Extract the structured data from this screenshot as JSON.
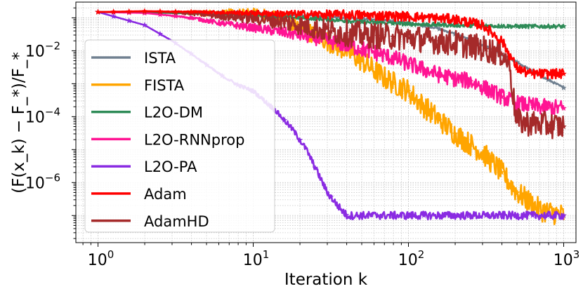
{
  "chart_data": {
    "type": "line",
    "xscale": "log",
    "yscale": "log",
    "xlim": [
      0.72,
      1200
    ],
    "ylim": [
      1.5e-08,
      0.3
    ],
    "xlabel": "Iteration k",
    "ylabel": "(F(x_k) − F_*)/F_*",
    "grid": true,
    "legend_position": "left",
    "x_ticks": [
      {
        "value": 1,
        "base": "10",
        "exp": "0"
      },
      {
        "value": 10,
        "base": "10",
        "exp": "1"
      },
      {
        "value": 100,
        "base": "10",
        "exp": "2"
      },
      {
        "value": 1000,
        "base": "10",
        "exp": "3"
      }
    ],
    "y_ticks": [
      {
        "value": 0.01,
        "base": "10",
        "exp": "−2"
      },
      {
        "value": 0.0001,
        "base": "10",
        "exp": "−4"
      },
      {
        "value": 1e-06,
        "base": "10",
        "exp": "−6"
      }
    ],
    "series": [
      {
        "name": "ISTA",
        "color": "#708090",
        "noise": 0.03,
        "points": [
          [
            1,
            0.15
          ],
          [
            2,
            0.155
          ],
          [
            5,
            0.15
          ],
          [
            10,
            0.14
          ],
          [
            20,
            0.12
          ],
          [
            50,
            0.095
          ],
          [
            100,
            0.07
          ],
          [
            150,
            0.05
          ],
          [
            200,
            0.032
          ],
          [
            300,
            0.015
          ],
          [
            500,
            0.0045
          ],
          [
            700,
            0.0018
          ],
          [
            1000,
            0.00075
          ]
        ]
      },
      {
        "name": "FISTA",
        "color": "#ffa500",
        "noise": 0.35,
        "points": [
          [
            1,
            0.15
          ],
          [
            2,
            0.15
          ],
          [
            5,
            0.14
          ],
          [
            10,
            0.13
          ],
          [
            15,
            0.1
          ],
          [
            20,
            0.05
          ],
          [
            30,
            0.02
          ],
          [
            40,
            0.01
          ],
          [
            50,
            0.005
          ],
          [
            70,
            0.0015
          ],
          [
            100,
            0.0006
          ],
          [
            120,
            0.00025
          ],
          [
            150,
            0.0001
          ],
          [
            200,
            3e-05
          ],
          [
            300,
            8e-06
          ],
          [
            400,
            2e-06
          ],
          [
            500,
            5e-07
          ],
          [
            700,
            1.5e-07
          ],
          [
            1000,
            1e-07
          ]
        ]
      },
      {
        "name": "L2O-DM",
        "color": "#2e8b57",
        "noise": 0.06,
        "points": [
          [
            1,
            0.15
          ],
          [
            3,
            0.14
          ],
          [
            6,
            0.13
          ],
          [
            10,
            0.12
          ],
          [
            30,
            0.09
          ],
          [
            50,
            0.075
          ],
          [
            100,
            0.065
          ],
          [
            200,
            0.06
          ],
          [
            500,
            0.055
          ],
          [
            1000,
            0.055
          ]
        ]
      },
      {
        "name": "L2O-RNNprop",
        "color": "#ff1493",
        "noise": 0.25,
        "points": [
          [
            1,
            0.15
          ],
          [
            2,
            0.14
          ],
          [
            4,
            0.1
          ],
          [
            6,
            0.07
          ],
          [
            10,
            0.05
          ],
          [
            20,
            0.03
          ],
          [
            40,
            0.015
          ],
          [
            60,
            0.009
          ],
          [
            80,
            0.006
          ],
          [
            100,
            0.004
          ],
          [
            150,
            0.002
          ],
          [
            200,
            0.0014
          ],
          [
            250,
            0.0012
          ],
          [
            300,
            0.0008
          ],
          [
            400,
            0.0004
          ],
          [
            500,
            0.00025
          ],
          [
            700,
            0.0002
          ],
          [
            1000,
            0.00018
          ]
        ]
      },
      {
        "name": "L2O-PA",
        "color": "#8a2be2",
        "noise": 0.12,
        "points": [
          [
            1,
            0.15
          ],
          [
            2,
            0.06
          ],
          [
            3,
            0.02
          ],
          [
            4,
            0.008
          ],
          [
            6,
            0.002
          ],
          [
            8,
            0.0009
          ],
          [
            10,
            0.0006
          ],
          [
            14,
            0.00015
          ],
          [
            18,
            4e-05
          ],
          [
            22,
            1e-05
          ],
          [
            26,
            2e-06
          ],
          [
            30,
            5e-07
          ],
          [
            35,
            2e-07
          ],
          [
            40,
            1e-07
          ],
          [
            50,
            1e-07
          ],
          [
            100,
            1e-07
          ],
          [
            1000,
            1e-07
          ]
        ]
      },
      {
        "name": "Adam",
        "color": "#ff0000",
        "noise": 0.15,
        "points": [
          [
            1,
            0.15
          ],
          [
            2,
            0.16
          ],
          [
            5,
            0.15
          ],
          [
            10,
            0.14
          ],
          [
            20,
            0.13
          ],
          [
            50,
            0.12
          ],
          [
            100,
            0.11
          ],
          [
            200,
            0.09
          ],
          [
            300,
            0.06
          ],
          [
            400,
            0.02
          ],
          [
            500,
            0.003
          ],
          [
            600,
            0.002
          ],
          [
            1000,
            0.002
          ]
        ]
      },
      {
        "name": "AdamHD",
        "color": "#a52a2a",
        "noise": 0.4,
        "points": [
          [
            1,
            0.15
          ],
          [
            2,
            0.155
          ],
          [
            4,
            0.14
          ],
          [
            6,
            0.12
          ],
          [
            10,
            0.1
          ],
          [
            15,
            0.08
          ],
          [
            20,
            0.06
          ],
          [
            30,
            0.04
          ],
          [
            50,
            0.03
          ],
          [
            100,
            0.025
          ],
          [
            150,
            0.02
          ],
          [
            200,
            0.017
          ],
          [
            300,
            0.012
          ],
          [
            400,
            0.008
          ],
          [
            450,
            0.004
          ],
          [
            470,
            0.0005
          ],
          [
            500,
            7e-05
          ],
          [
            1000,
            5e-05
          ]
        ]
      }
    ]
  }
}
